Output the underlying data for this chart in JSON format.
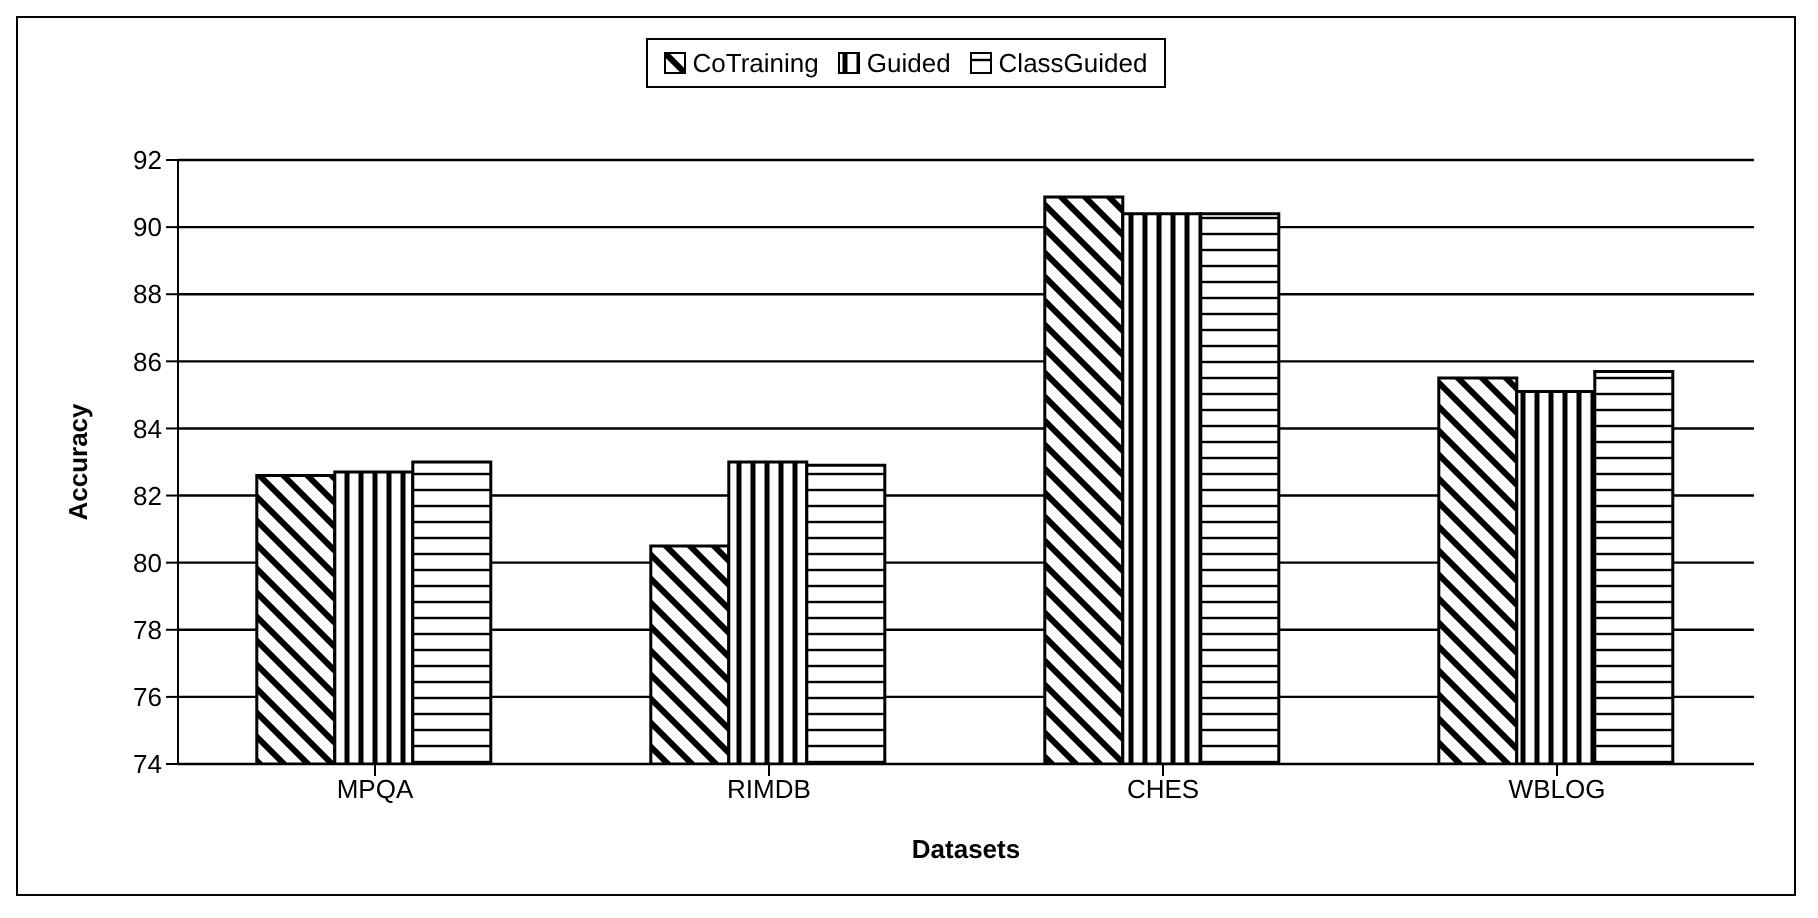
{
  "chart_data": {
    "type": "bar",
    "xlabel": "Datasets",
    "ylabel": "Accuracy",
    "categories": [
      "MPQA",
      "RIMDB",
      "CHES",
      "WBLOG"
    ],
    "series": [
      {
        "name": "CoTraining",
        "color": "#000000",
        "values": [
          82.6,
          80.5,
          90.9,
          85.5
        ]
      },
      {
        "name": "Guided",
        "color": "#000000",
        "values": [
          82.7,
          83.0,
          90.4,
          85.1
        ]
      },
      {
        "name": "ClassGuided",
        "color": "#000000",
        "values": [
          83.0,
          82.9,
          90.4,
          85.7
        ]
      }
    ],
    "ylim": [
      74,
      92
    ],
    "yticks": [
      74,
      76,
      78,
      80,
      82,
      84,
      86,
      88,
      90,
      92
    ],
    "grid": "y",
    "legend": "top"
  }
}
